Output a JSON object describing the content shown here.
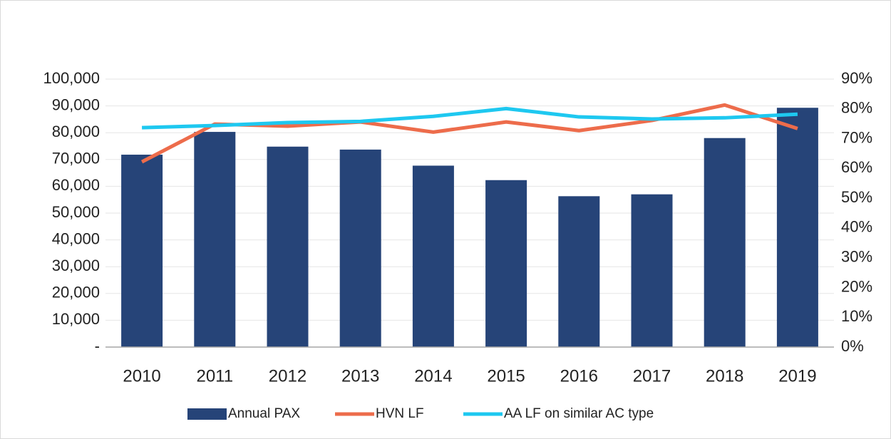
{
  "chart_data": {
    "type": "bar",
    "categories": [
      "2010",
      "2011",
      "2012",
      "2013",
      "2014",
      "2015",
      "2016",
      "2017",
      "2018",
      "2019"
    ],
    "series": [
      {
        "name": "Annual PAX",
        "type": "bar",
        "color": "#264478",
        "values": [
          71800,
          80300,
          74800,
          73700,
          67700,
          62300,
          56300,
          57000,
          78000,
          89300
        ]
      },
      {
        "name": "HVN LF",
        "type": "line",
        "axis": "y2",
        "color": "#ed6c4b",
        "values": [
          62.2,
          74.9,
          74.2,
          75.6,
          72.2,
          75.6,
          72.7,
          76.1,
          81.3,
          73.4
        ]
      },
      {
        "name": "AA LF on similar AC type",
        "type": "line",
        "axis": "y2",
        "color": "#1ec8f0",
        "values": [
          73.7,
          74.4,
          75.4,
          75.8,
          77.5,
          80.1,
          77.3,
          76.6,
          77.0,
          78.2
        ]
      }
    ],
    "ylim": [
      0,
      100000
    ],
    "yticks": [
      {
        "value": 0,
        "label": "-"
      },
      {
        "value": 10000,
        "label": "10,000"
      },
      {
        "value": 20000,
        "label": "20,000"
      },
      {
        "value": 30000,
        "label": "30,000"
      },
      {
        "value": 40000,
        "label": "40,000"
      },
      {
        "value": 50000,
        "label": "50,000"
      },
      {
        "value": 60000,
        "label": "60,000"
      },
      {
        "value": 70000,
        "label": "70,000"
      },
      {
        "value": 80000,
        "label": "80,000"
      },
      {
        "value": 90000,
        "label": "90,000"
      },
      {
        "value": 100000,
        "label": "100,000"
      }
    ],
    "y2lim": [
      0,
      90
    ],
    "y2ticks": [
      {
        "value": 0,
        "label": "0%"
      },
      {
        "value": 10,
        "label": "10%"
      },
      {
        "value": 20,
        "label": "20%"
      },
      {
        "value": 30,
        "label": "30%"
      },
      {
        "value": 40,
        "label": "40%"
      },
      {
        "value": 50,
        "label": "50%"
      },
      {
        "value": 60,
        "label": "60%"
      },
      {
        "value": 70,
        "label": "70%"
      },
      {
        "value": 80,
        "label": "80%"
      },
      {
        "value": 90,
        "label": "90%"
      }
    ],
    "grid": true,
    "legend": "bottom"
  }
}
